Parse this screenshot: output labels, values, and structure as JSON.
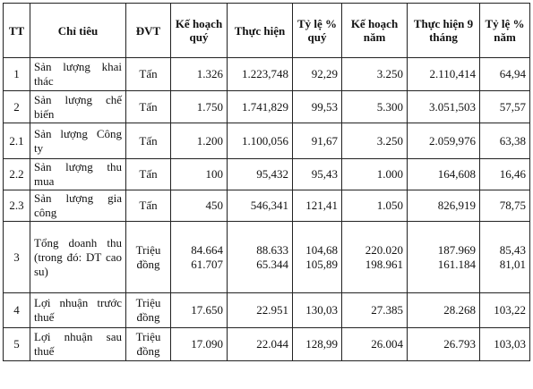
{
  "headers": {
    "tt": "TT",
    "chi_tieu": "Chỉ tiêu",
    "dvt": "ĐVT",
    "ke_hoach_quy": "Kế hoạch quý",
    "thuc_hien": "Thực hiện",
    "ty_le_quy": "Tỷ lệ % quý",
    "ke_hoach_nam": "Kế hoạch năm",
    "thuc_hien_9_thang": "Thực hiện 9 tháng",
    "ty_le_nam": "Tỷ lệ % năm"
  },
  "rows": [
    {
      "tt": "1",
      "name": "Sản lượng khai thác",
      "unit": "Tấn",
      "kh_quy": "1.326",
      "thuc_hien": "1.223,748",
      "ty_le_quy": "92,29",
      "kh_nam": "3.250",
      "th_9t": "2.110,414",
      "ty_le_nam": "64,94"
    },
    {
      "tt": "2",
      "name": "Sản lượng chế biến",
      "unit": "Tấn",
      "kh_quy": "1.750",
      "thuc_hien": "1.741,829",
      "ty_le_quy": "99,53",
      "kh_nam": "5.300",
      "th_9t": "3.051,503",
      "ty_le_nam": "57,57"
    },
    {
      "tt": "2.1",
      "name": "Sản lượng Công ty",
      "unit": "Tấn",
      "kh_quy": "1.200",
      "thuc_hien": "1.100,056",
      "ty_le_quy": "91,67",
      "kh_nam": "3.250",
      "th_9t": "2.059,976",
      "ty_le_nam": "63,38"
    },
    {
      "tt": "2.2",
      "name": "Sản lượng thu mua",
      "unit": "Tấn",
      "kh_quy": "100",
      "thuc_hien": "95,432",
      "ty_le_quy": "95,43",
      "kh_nam": "1.000",
      "th_9t": "164,608",
      "ty_le_nam": "16,46"
    },
    {
      "tt": "2.3",
      "name": "Sản lượng gia công",
      "unit": "Tấn",
      "kh_quy": "450",
      "thuc_hien": "546,341",
      "ty_le_quy": "121,41",
      "kh_nam": "1.050",
      "th_9t": "826,919",
      "ty_le_nam": "78,75"
    },
    {
      "tt": "3",
      "name": "Tổng doanh thu (trong đó: DT cao su)",
      "unit": "Triệu đồng",
      "kh_quy_a": "84.664",
      "kh_quy_b": "61.707",
      "thuc_hien_a": "88.633",
      "thuc_hien_b": "65.344",
      "ty_le_quy_a": "104,68",
      "ty_le_quy_b": "105,89",
      "kh_nam_a": "220.020",
      "kh_nam_b": "198.961",
      "th_9t_a": "187.969",
      "th_9t_b": "161.184",
      "ty_le_nam_a": "85,43",
      "ty_le_nam_b": "81,01"
    },
    {
      "tt": "4",
      "name": "Lợi nhuận trước thuế",
      "unit": "Triệu đồng",
      "kh_quy": "17.650",
      "thuc_hien": "22.951",
      "ty_le_quy": "130,03",
      "kh_nam": "27.385",
      "th_9t": "28.268",
      "ty_le_nam": "103,22"
    },
    {
      "tt": "5",
      "name": "Lợi nhuận sau thuế",
      "unit": "Triệu đồng",
      "kh_quy": "17.090",
      "thuc_hien": "22.044",
      "ty_le_quy": "128,99",
      "kh_nam": "26.004",
      "th_9t": "26.793",
      "ty_le_nam": "103,03"
    }
  ]
}
